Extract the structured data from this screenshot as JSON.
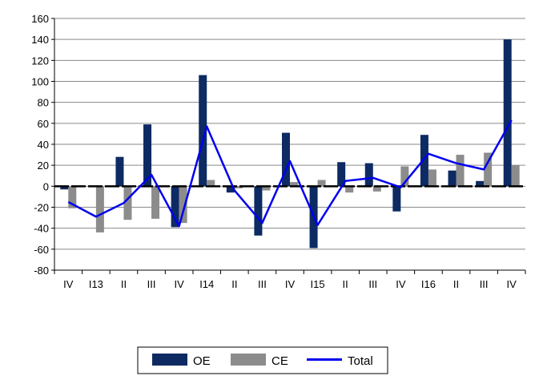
{
  "chart_data": {
    "type": "bar",
    "categories": [
      "IV",
      "I13",
      "II",
      "III",
      "IV",
      "I14",
      "II",
      "III",
      "IV",
      "I15",
      "II",
      "III",
      "IV",
      "I16",
      "II",
      "III",
      "IV"
    ],
    "series": [
      {
        "name": "OE",
        "kind": "bar",
        "color": "#0d2a63",
        "values": [
          -3,
          0,
          28,
          59,
          -39,
          106,
          -6,
          -47,
          51,
          -59,
          23,
          22,
          -24,
          49,
          15,
          5,
          140
        ]
      },
      {
        "name": "CE",
        "kind": "bar",
        "color": "#8c8c8c",
        "values": [
          -21,
          -44,
          -32,
          -31,
          -35,
          6,
          -2,
          -4,
          4,
          6,
          -6,
          -5,
          19,
          16,
          30,
          32,
          20
        ]
      },
      {
        "name": "Total",
        "kind": "line",
        "color": "#0000ee",
        "values": [
          -15,
          -29,
          -16,
          11,
          -38,
          57,
          -4,
          -35,
          24,
          -37,
          5,
          8,
          -1,
          31,
          22,
          16,
          63
        ]
      }
    ],
    "ylim": [
      -80,
      160
    ],
    "yticks": [
      -80,
      -60,
      -40,
      -20,
      0,
      20,
      40,
      60,
      80,
      100,
      120,
      140,
      160
    ],
    "title": "",
    "xlabel": "",
    "ylabel": "",
    "grid": true,
    "legend_position": "bottom-center"
  }
}
